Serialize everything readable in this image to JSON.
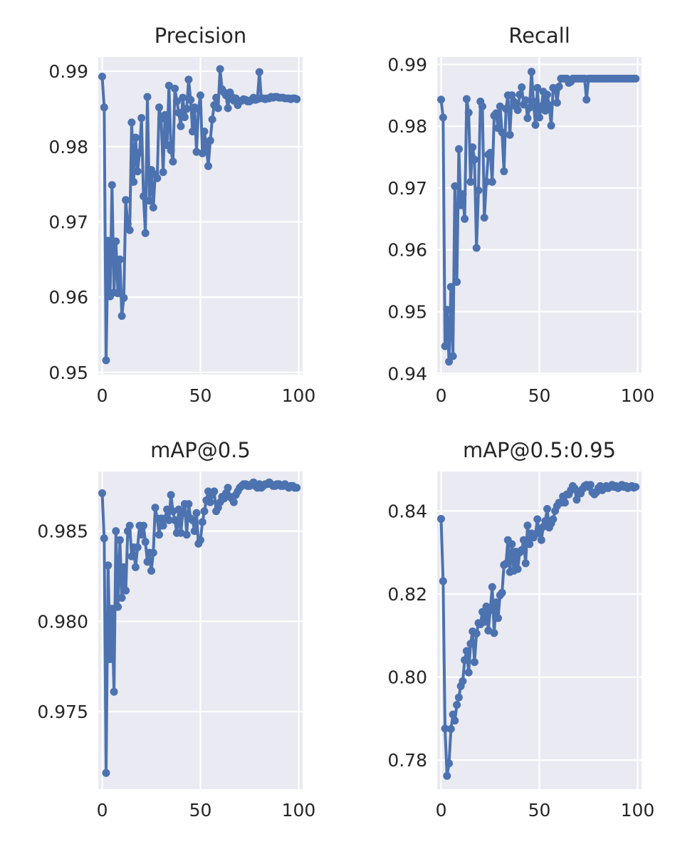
{
  "chart_data": [
    {
      "type": "line",
      "title": "Precision",
      "xlim": [
        -2,
        102
      ],
      "ylim": [
        0.9497,
        0.9919
      ],
      "xticks": [
        0,
        50,
        100
      ],
      "xtick_labels": [
        "0",
        "50",
        "100"
      ],
      "yticks": [
        0.95,
        0.96,
        0.97,
        0.98,
        0.99
      ],
      "ytick_labels": [
        "0.95",
        "0.96",
        "0.97",
        "0.98",
        "0.99"
      ],
      "grid": true,
      "series": [
        {
          "color": "#4c72b0",
          "x": [
            0,
            1,
            2,
            3,
            4,
            5,
            6,
            7,
            8,
            9,
            10,
            11,
            12,
            13,
            14,
            15,
            16,
            17,
            18,
            19,
            20,
            21,
            22,
            23,
            24,
            25,
            26,
            27,
            28,
            29,
            30,
            31,
            32,
            33,
            34,
            35,
            36,
            37,
            38,
            39,
            40,
            41,
            42,
            43,
            44,
            45,
            46,
            47,
            48,
            49,
            50,
            51,
            52,
            53,
            54,
            55,
            56,
            57,
            58,
            59,
            60,
            61,
            62,
            63,
            64,
            65,
            66,
            67,
            68,
            69,
            70,
            71,
            72,
            73,
            74,
            75,
            76,
            77,
            78,
            79,
            80,
            81,
            82,
            83,
            84,
            85,
            86,
            87,
            88,
            89,
            90,
            91,
            92,
            93,
            94,
            95,
            96,
            97,
            98,
            99
          ],
          "y": [
            0.9893,
            0.9852,
            0.9516,
            0.9675,
            0.9601,
            0.9749,
            0.9606,
            0.9674,
            0.9605,
            0.965,
            0.9575,
            0.9599,
            0.9729,
            0.9697,
            0.9689,
            0.9832,
            0.9753,
            0.9812,
            0.9767,
            0.9792,
            0.9838,
            0.9734,
            0.9685,
            0.9866,
            0.9728,
            0.9769,
            0.9719,
            0.9763,
            0.9758,
            0.9852,
            0.9837,
            0.9766,
            0.9842,
            0.9802,
            0.9881,
            0.9795,
            0.978,
            0.9877,
            0.986,
            0.9845,
            0.9827,
            0.9865,
            0.9839,
            0.985,
            0.9889,
            0.9862,
            0.982,
            0.9852,
            0.9793,
            0.985,
            0.9868,
            0.9791,
            0.982,
            0.98,
            0.9774,
            0.9808,
            0.9836,
            0.9855,
            0.9865,
            0.9851,
            0.9903,
            0.9876,
            0.9872,
            0.9868,
            0.9851,
            0.9872,
            0.9866,
            0.9861,
            0.9864,
            0.9855,
            0.986,
            0.9861,
            0.9863,
            0.9862,
            0.986,
            0.986,
            0.9862,
            0.9865,
            0.9862,
            0.9863,
            0.9899,
            0.9864,
            0.9864,
            0.9863,
            0.9864,
            0.9864,
            0.9866,
            0.9865,
            0.9866,
            0.9866,
            0.9865,
            0.9865,
            0.9865,
            0.9864,
            0.9864,
            0.9864,
            0.9863,
            0.9864,
            0.9864,
            0.9863
          ]
        }
      ]
    },
    {
      "type": "line",
      "title": "Recall",
      "xlim": [
        -2,
        102
      ],
      "ylim": [
        0.9398,
        0.9912
      ],
      "xticks": [
        0,
        50,
        100
      ],
      "xtick_labels": [
        "0",
        "50",
        "100"
      ],
      "yticks": [
        0.94,
        0.95,
        0.96,
        0.97,
        0.98,
        0.99
      ],
      "ytick_labels": [
        "0.94",
        "0.95",
        "0.96",
        "0.97",
        "0.98",
        "0.99"
      ],
      "grid": true,
      "series": [
        {
          "color": "#4c72b0",
          "x": [
            0,
            1,
            2,
            3,
            4,
            5,
            6,
            7,
            8,
            9,
            10,
            11,
            12,
            13,
            14,
            15,
            16,
            17,
            18,
            19,
            20,
            21,
            22,
            23,
            24,
            25,
            26,
            27,
            28,
            29,
            30,
            31,
            32,
            33,
            34,
            35,
            36,
            37,
            38,
            39,
            40,
            41,
            42,
            43,
            44,
            45,
            46,
            47,
            48,
            49,
            50,
            51,
            52,
            53,
            54,
            55,
            56,
            57,
            58,
            59,
            60,
            61,
            62,
            63,
            64,
            65,
            66,
            67,
            68,
            69,
            70,
            71,
            72,
            73,
            74,
            75,
            76,
            77,
            78,
            79,
            80,
            81,
            82,
            83,
            84,
            85,
            86,
            87,
            88,
            89,
            90,
            91,
            92,
            93,
            94,
            95,
            96,
            97,
            98,
            99
          ],
          "y": [
            0.9843,
            0.9814,
            0.9444,
            0.9503,
            0.9419,
            0.954,
            0.9428,
            0.9703,
            0.9548,
            0.9763,
            0.9672,
            0.969,
            0.965,
            0.9844,
            0.9822,
            0.971,
            0.9766,
            0.9746,
            0.9603,
            0.9696,
            0.984,
            0.9832,
            0.9652,
            0.971,
            0.9754,
            0.9757,
            0.971,
            0.9817,
            0.9821,
            0.9797,
            0.9832,
            0.979,
            0.9727,
            0.9828,
            0.985,
            0.9786,
            0.985,
            0.984,
            0.9832,
            0.9826,
            0.9851,
            0.9863,
            0.9835,
            0.9842,
            0.9813,
            0.983,
            0.9888,
            0.984,
            0.9802,
            0.9862,
            0.9814,
            0.9832,
            0.9856,
            0.9825,
            0.9851,
            0.9834,
            0.9801,
            0.9862,
            0.986,
            0.9838,
            0.9864,
            0.9877,
            0.9877,
            0.9877,
            0.9877,
            0.987,
            0.9872,
            0.9877,
            0.9877,
            0.9877,
            0.9877,
            0.9877,
            0.9877,
            0.9877,
            0.9843,
            0.9877,
            0.9877,
            0.9877,
            0.9877,
            0.9877,
            0.9877,
            0.9877,
            0.9877,
            0.9877,
            0.9877,
            0.9877,
            0.9877,
            0.9877,
            0.9877,
            0.9877,
            0.9877,
            0.9877,
            0.9877,
            0.9877,
            0.9877,
            0.9877,
            0.9877,
            0.9877,
            0.9877,
            0.9877
          ]
        }
      ]
    },
    {
      "type": "line",
      "title": "mAP@0.5",
      "xlim": [
        -2,
        102
      ],
      "ylim": [
        0.9707,
        0.9883
      ],
      "xticks": [
        0,
        50,
        100
      ],
      "xtick_labels": [
        "0",
        "50",
        "100"
      ],
      "yticks": [
        0.975,
        0.98,
        0.985
      ],
      "ytick_labels": [
        "0.975",
        "0.980",
        "0.985"
      ],
      "grid": true,
      "series": [
        {
          "color": "#4c72b0",
          "x": [
            0,
            1,
            2,
            3,
            4,
            5,
            6,
            7,
            8,
            9,
            10,
            11,
            12,
            13,
            14,
            15,
            16,
            17,
            18,
            19,
            20,
            21,
            22,
            23,
            24,
            25,
            26,
            27,
            28,
            29,
            30,
            31,
            32,
            33,
            34,
            35,
            36,
            37,
            38,
            39,
            40,
            41,
            42,
            43,
            44,
            45,
            46,
            47,
            48,
            49,
            50,
            51,
            52,
            53,
            54,
            55,
            56,
            57,
            58,
            59,
            60,
            61,
            62,
            63,
            64,
            65,
            66,
            67,
            68,
            69,
            70,
            71,
            72,
            73,
            74,
            75,
            76,
            77,
            78,
            79,
            80,
            81,
            82,
            83,
            84,
            85,
            86,
            87,
            88,
            89,
            90,
            91,
            92,
            93,
            94,
            95,
            96,
            97,
            98,
            99
          ],
          "y": [
            0.9871,
            0.9846,
            0.9716,
            0.9831,
            0.9779,
            0.9807,
            0.9761,
            0.985,
            0.9808,
            0.9845,
            0.9813,
            0.983,
            0.9817,
            0.985,
            0.9853,
            0.9836,
            0.9841,
            0.983,
            0.9841,
            0.9853,
            0.9848,
            0.9853,
            0.9844,
            0.9833,
            0.9838,
            0.9828,
            0.9838,
            0.9863,
            0.9857,
            0.9848,
            0.9857,
            0.9853,
            0.9857,
            0.9862,
            0.9856,
            0.987,
            0.9861,
            0.9856,
            0.9849,
            0.9862,
            0.9849,
            0.986,
            0.9865,
            0.9848,
            0.9865,
            0.9857,
            0.9856,
            0.985,
            0.986,
            0.9843,
            0.9845,
            0.9855,
            0.9861,
            0.9867,
            0.9872,
            0.9866,
            0.987,
            0.9872,
            0.9861,
            0.9863,
            0.9866,
            0.9869,
            0.9868,
            0.9871,
            0.9874,
            0.9869,
            0.9868,
            0.9866,
            0.987,
            0.9872,
            0.9874,
            0.9875,
            0.9876,
            0.9876,
            0.9875,
            0.9875,
            0.9876,
            0.9877,
            0.9875,
            0.9874,
            0.9876,
            0.9874,
            0.9875,
            0.9876,
            0.9876,
            0.9877,
            0.9876,
            0.9875,
            0.9875,
            0.9876,
            0.9876,
            0.9875,
            0.9875,
            0.9876,
            0.9875,
            0.9874,
            0.9875,
            0.9875,
            0.9874,
            0.9874
          ]
        }
      ]
    },
    {
      "type": "line",
      "title": "mAP@0.5:0.95",
      "xlim": [
        -2,
        102
      ],
      "ylim": [
        0.773,
        0.8495
      ],
      "xticks": [
        0,
        50,
        100
      ],
      "xtick_labels": [
        "0",
        "50",
        "100"
      ],
      "yticks": [
        0.78,
        0.8,
        0.82,
        0.84
      ],
      "ytick_labels": [
        "0.78",
        "0.80",
        "0.82",
        "0.84"
      ],
      "grid": true,
      "series": [
        {
          "color": "#4c72b0",
          "x": [
            0,
            1,
            2,
            3,
            4,
            5,
            6,
            7,
            8,
            9,
            10,
            11,
            12,
            13,
            14,
            15,
            16,
            17,
            18,
            19,
            20,
            21,
            22,
            23,
            24,
            25,
            26,
            27,
            28,
            29,
            30,
            31,
            32,
            33,
            34,
            35,
            36,
            37,
            38,
            39,
            40,
            41,
            42,
            43,
            44,
            45,
            46,
            47,
            48,
            49,
            50,
            51,
            52,
            53,
            54,
            55,
            56,
            57,
            58,
            59,
            60,
            61,
            62,
            63,
            64,
            65,
            66,
            67,
            68,
            69,
            70,
            71,
            72,
            73,
            74,
            75,
            76,
            77,
            78,
            79,
            80,
            81,
            82,
            83,
            84,
            85,
            86,
            87,
            88,
            89,
            90,
            91,
            92,
            93,
            94,
            95,
            96,
            97,
            98,
            99
          ],
          "y": [
            0.8381,
            0.8231,
            0.7876,
            0.7762,
            0.7792,
            0.7875,
            0.791,
            0.7895,
            0.7933,
            0.7951,
            0.7978,
            0.799,
            0.8041,
            0.8063,
            0.8011,
            0.808,
            0.811,
            0.8036,
            0.8105,
            0.813,
            0.8127,
            0.8157,
            0.8133,
            0.817,
            0.8112,
            0.8161,
            0.8217,
            0.8106,
            0.818,
            0.8142,
            0.8197,
            0.8203,
            0.827,
            0.8273,
            0.833,
            0.8253,
            0.832,
            0.8256,
            0.8302,
            0.826,
            0.83,
            0.8306,
            0.833,
            0.8274,
            0.8365,
            0.832,
            0.8346,
            0.8336,
            0.8344,
            0.838,
            0.8347,
            0.833,
            0.8362,
            0.8376,
            0.8405,
            0.836,
            0.837,
            0.838,
            0.84,
            0.8412,
            0.842,
            0.842,
            0.8435,
            0.842,
            0.844,
            0.844,
            0.845,
            0.846,
            0.8454,
            0.8427,
            0.8446,
            0.8442,
            0.8453,
            0.846,
            0.8463,
            0.8458,
            0.8463,
            0.8445,
            0.844,
            0.8445,
            0.8455,
            0.846,
            0.845,
            0.8455,
            0.846,
            0.8455,
            0.8458,
            0.8463,
            0.8458,
            0.846,
            0.8455,
            0.8458,
            0.8463,
            0.8458,
            0.846,
            0.8455,
            0.8458,
            0.846,
            0.8456,
            0.8458
          ]
        }
      ]
    }
  ]
}
